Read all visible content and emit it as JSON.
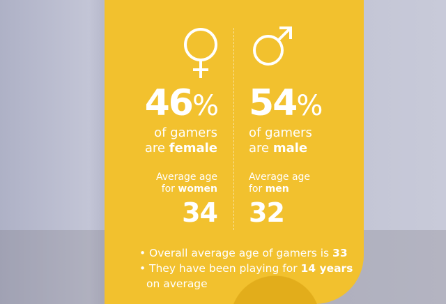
{
  "female": {
    "icon": "female-symbol-icon",
    "percent": "46",
    "unit": "%",
    "line1": "of gamers",
    "line2_prefix": "are ",
    "line2_bold": "female",
    "age_label1": "Average age",
    "age_label2_prefix": "for ",
    "age_label2_bold": "women",
    "age": "34"
  },
  "male": {
    "icon": "male-symbol-icon",
    "percent": "54",
    "unit": "%",
    "line1": "of gamers",
    "line2_prefix": "are ",
    "line2_bold": "male",
    "age_label1": "Average age",
    "age_label2_prefix": "for ",
    "age_label2_bold": "men",
    "age": "32"
  },
  "bullets": [
    {
      "text": "Overall average age of gamers is ",
      "bold": "33",
      "tail": ""
    },
    {
      "text": "They have been playing for ",
      "bold": "14 years",
      "tail": "on average"
    }
  ],
  "colors": {
    "card": "#f2c12e",
    "background": "#c3c5d6",
    "text": "#ffffff"
  }
}
